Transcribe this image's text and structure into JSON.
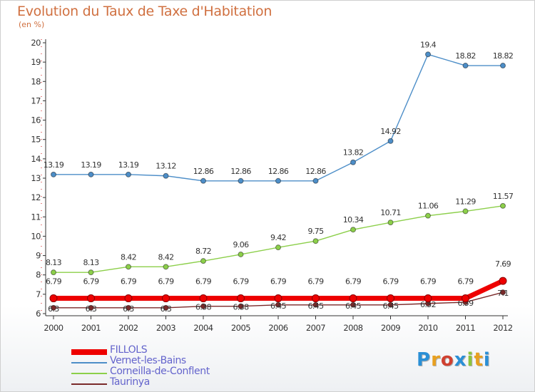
{
  "title": "Evolution du Taux de Taxe d'Habitation",
  "subtitle": "(en %)",
  "logo": {
    "letters": [
      "P",
      "r",
      "o",
      "x",
      "i",
      "t",
      "i"
    ],
    "colors": [
      "#2a8fd6",
      "#e8a020",
      "#d04030",
      "#2a8fd6",
      "#8cc43c",
      "#e8a020",
      "#2a8fd6"
    ]
  },
  "chart_data": {
    "type": "line",
    "x": [
      "2000",
      "2001",
      "2002",
      "2003",
      "2004",
      "2005",
      "2006",
      "2007",
      "2008",
      "2009",
      "2010",
      "2011",
      "2012"
    ],
    "ylim": [
      6,
      20
    ],
    "yticks": [
      6,
      7,
      8,
      9,
      10,
      11,
      12,
      13,
      14,
      15,
      16,
      17,
      18,
      19,
      20
    ],
    "grid": false,
    "legend_position": "bottom-left",
    "series": [
      {
        "name": "FILLOLS",
        "color": "#ee0000",
        "values": [
          6.79,
          6.79,
          6.79,
          6.79,
          6.79,
          6.79,
          6.79,
          6.79,
          6.79,
          6.79,
          6.79,
          6.79,
          7.69
        ],
        "labels": [
          "6.79",
          "6.79",
          "6.79",
          "6.79",
          "6.79",
          "6.79",
          "6.79",
          "6.79",
          "6.79",
          "6.79",
          "6.79",
          "6.79",
          "7.69"
        ]
      },
      {
        "name": "Vernet-les-Bains",
        "color": "#4d8ec8",
        "values": [
          13.19,
          13.19,
          13.19,
          13.12,
          12.86,
          12.86,
          12.86,
          12.86,
          13.82,
          14.92,
          19.4,
          18.82,
          18.82
        ],
        "labels": [
          "13.19",
          "13.19",
          "13.19",
          "13.12",
          "12.86",
          "12.86",
          "12.86",
          "12.86",
          "13.82",
          "14.92",
          "19.4",
          "18.82",
          "18.82"
        ]
      },
      {
        "name": "Corneilla-de-Conflent",
        "color": "#8ccf4a",
        "values": [
          8.13,
          8.13,
          8.42,
          8.42,
          8.72,
          9.06,
          9.42,
          9.75,
          10.34,
          10.71,
          11.06,
          11.29,
          11.57
        ],
        "labels": [
          "8.13",
          "8.13",
          "8.42",
          "8.42",
          "8.72",
          "9.06",
          "9.42",
          "9.75",
          "10.34",
          "10.71",
          "11.06",
          "11.29",
          "11.57"
        ]
      },
      {
        "name": "Taurinya",
        "color": "#7a2a2a",
        "values": [
          6.3,
          6.3,
          6.3,
          6.3,
          6.38,
          6.38,
          6.45,
          6.45,
          6.45,
          6.45,
          6.52,
          6.59,
          7.1
        ],
        "labels": [
          "6.3",
          "6.3",
          "6.3",
          "6.3",
          "6.38",
          "6.38",
          "6.45",
          "6.45",
          "6.45",
          "6.45",
          "6.52",
          "6.59",
          "7.1"
        ]
      }
    ]
  }
}
